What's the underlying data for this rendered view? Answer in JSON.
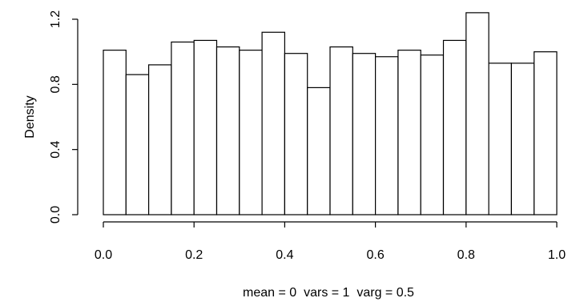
{
  "chart_data": {
    "type": "bar",
    "title": "",
    "xlabel": "mean = 0  vars = 1  varg = 0.5",
    "ylabel": "Density",
    "xlim": [
      0,
      1
    ],
    "ylim": [
      0,
      1.2
    ],
    "grid": false,
    "bin_edges": [
      0.0,
      0.05,
      0.1,
      0.15,
      0.2,
      0.25,
      0.3,
      0.35,
      0.4,
      0.45,
      0.5,
      0.55,
      0.6,
      0.65,
      0.7,
      0.75,
      0.8,
      0.85,
      0.9,
      0.95,
      1.0
    ],
    "values": [
      1.01,
      0.86,
      0.92,
      1.06,
      1.07,
      1.03,
      1.01,
      1.12,
      0.99,
      0.78,
      1.03,
      0.99,
      0.97,
      1.01,
      0.98,
      1.07,
      1.24,
      0.93,
      0.93,
      1.0
    ],
    "x_ticks": [
      {
        "value": 0.0,
        "label": "0.0"
      },
      {
        "value": 0.2,
        "label": "0.2"
      },
      {
        "value": 0.4,
        "label": "0.4"
      },
      {
        "value": 0.6,
        "label": "0.6"
      },
      {
        "value": 0.8,
        "label": "0.8"
      },
      {
        "value": 1.0,
        "label": "1.0"
      }
    ],
    "y_ticks": [
      {
        "value": 0.0,
        "label": "0.0"
      },
      {
        "value": 0.4,
        "label": "0.4"
      },
      {
        "value": 0.8,
        "label": "0.8"
      },
      {
        "value": 1.2,
        "label": "1.2"
      }
    ]
  }
}
